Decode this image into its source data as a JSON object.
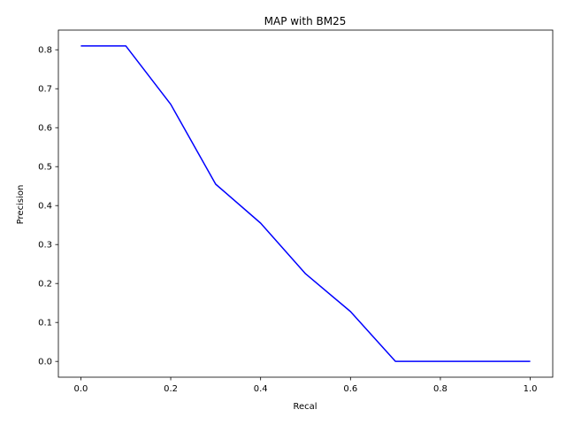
{
  "chart_data": {
    "type": "line",
    "title": "MAP with BM25",
    "xlabel": "Recal",
    "ylabel": "Precision",
    "xlim": [
      -0.05,
      1.05
    ],
    "ylim": [
      -0.0405,
      0.8505
    ],
    "xticks": [
      0.0,
      0.2,
      0.4,
      0.6,
      0.8,
      1.0
    ],
    "xtick_labels": [
      "0.0",
      "0.2",
      "0.4",
      "0.6",
      "0.8",
      "1.0"
    ],
    "yticks": [
      0.0,
      0.1,
      0.2,
      0.3,
      0.4,
      0.5,
      0.6,
      0.7,
      0.8
    ],
    "ytick_labels": [
      "0.0",
      "0.1",
      "0.2",
      "0.3",
      "0.4",
      "0.5",
      "0.6",
      "0.7",
      "0.8"
    ],
    "grid": false,
    "series": [
      {
        "name": "precision",
        "color": "#0000ff",
        "x": [
          0.0,
          0.1,
          0.2,
          0.3,
          0.4,
          0.5,
          0.6,
          0.7,
          0.8,
          0.9,
          1.0
        ],
        "y": [
          0.81,
          0.81,
          0.66,
          0.455,
          0.355,
          0.225,
          0.128,
          0.0,
          0.0,
          0.0,
          0.0
        ]
      }
    ]
  }
}
